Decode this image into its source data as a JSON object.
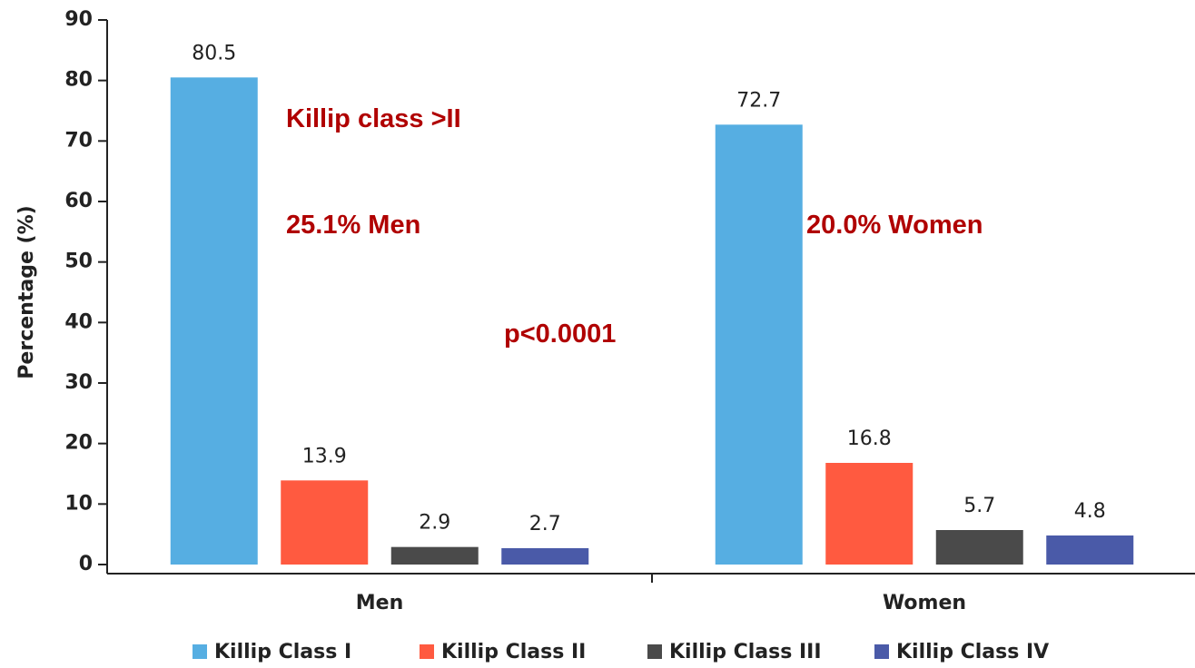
{
  "chart_data": {
    "type": "bar",
    "y_label": "Percentage (%)",
    "categories": [
      "Men",
      "Women"
    ],
    "series": [
      {
        "name": "Killip Class I",
        "color": "#56aee2",
        "values": [
          80.5,
          72.7
        ]
      },
      {
        "name": "Killip Class II",
        "color": "#ff5a40",
        "values": [
          13.9,
          16.8
        ]
      },
      {
        "name": "Killip Class III",
        "color": "#4a4a4a",
        "values": [
          2.9,
          5.7
        ]
      },
      {
        "name": "Killip Class IV",
        "color": "#4a5aa8",
        "values": [
          2.7,
          4.8
        ]
      }
    ],
    "ylim": [
      0,
      90
    ],
    "yticks": [
      0,
      10,
      20,
      30,
      40,
      50,
      60,
      70,
      80,
      90
    ],
    "annotations": [
      "Killip class >II",
      "25.1% Men",
      "20.0% Women",
      "p<0.0001"
    ]
  }
}
